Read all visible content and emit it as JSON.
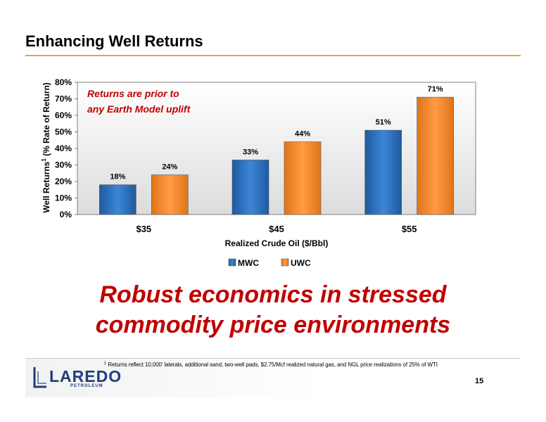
{
  "slide": {
    "title": "Enhancing Well Returns",
    "headline_line1": "Robust economics in stressed",
    "headline_line2": "commodity price environments",
    "footnote_marker": "1",
    "footnote": "Returns reflect 10,000’ laterals, additional sand, two-well pads, $2.75/Mcf realized natural gas, and NGL price realizations of 25% of WTI",
    "logo_word": "LAREDO",
    "logo_sub": "PETROLEUM",
    "page_number": "15"
  },
  "chart_data": {
    "type": "bar",
    "categories": [
      "$35",
      "$45",
      "$55"
    ],
    "series": [
      {
        "name": "MWC",
        "values": [
          18,
          33,
          51
        ],
        "color": "#2e75c4"
      },
      {
        "name": "UWC",
        "values": [
          24,
          44,
          71
        ],
        "color": "#f28a2e"
      }
    ],
    "data_labels": [
      [
        "18%",
        "33%",
        "51%"
      ],
      [
        "24%",
        "44%",
        "71%"
      ]
    ],
    "xlabel": "Realized Crude Oil ($/Bbl)",
    "ylabel_main": "Well Returns",
    "ylabel_sup": "1",
    "ylabel_tail": " (% Rate of Return)",
    "ylim": [
      0,
      80
    ],
    "yticks": [
      "0%",
      "10%",
      "20%",
      "30%",
      "40%",
      "50%",
      "60%",
      "70%",
      "80%"
    ],
    "annotation_line1": "Returns are prior to",
    "annotation_line2": "any Earth Model uplift",
    "annotation_color": "#c00000",
    "legend_position": "bottom",
    "grid": false
  }
}
